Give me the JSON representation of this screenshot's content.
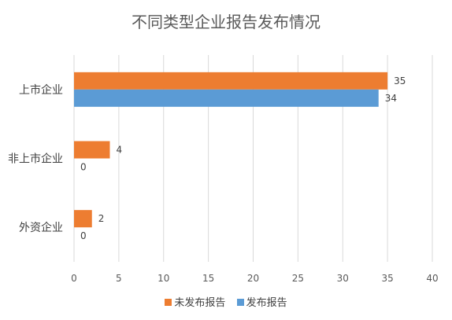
{
  "chart_data": {
    "type": "bar",
    "orientation": "horizontal",
    "title": "不同类型企业报告发布情况",
    "xlabel": "",
    "ylabel": "",
    "categories": [
      "上市企业",
      "非上市企业",
      "外资企业"
    ],
    "series": [
      {
        "name": "未发布报告",
        "values": [
          35,
          4,
          2
        ],
        "color": "#ED7D31"
      },
      {
        "name": "发布报告",
        "values": [
          34,
          0,
          0
        ],
        "color": "#5B9BD5"
      }
    ],
    "xlim": [
      0,
      40
    ],
    "xticks": [
      "0",
      "5",
      "10",
      "15",
      "20",
      "25",
      "30",
      "35",
      "40"
    ],
    "grid": true,
    "legend": "bottom",
    "data_labels": true
  }
}
